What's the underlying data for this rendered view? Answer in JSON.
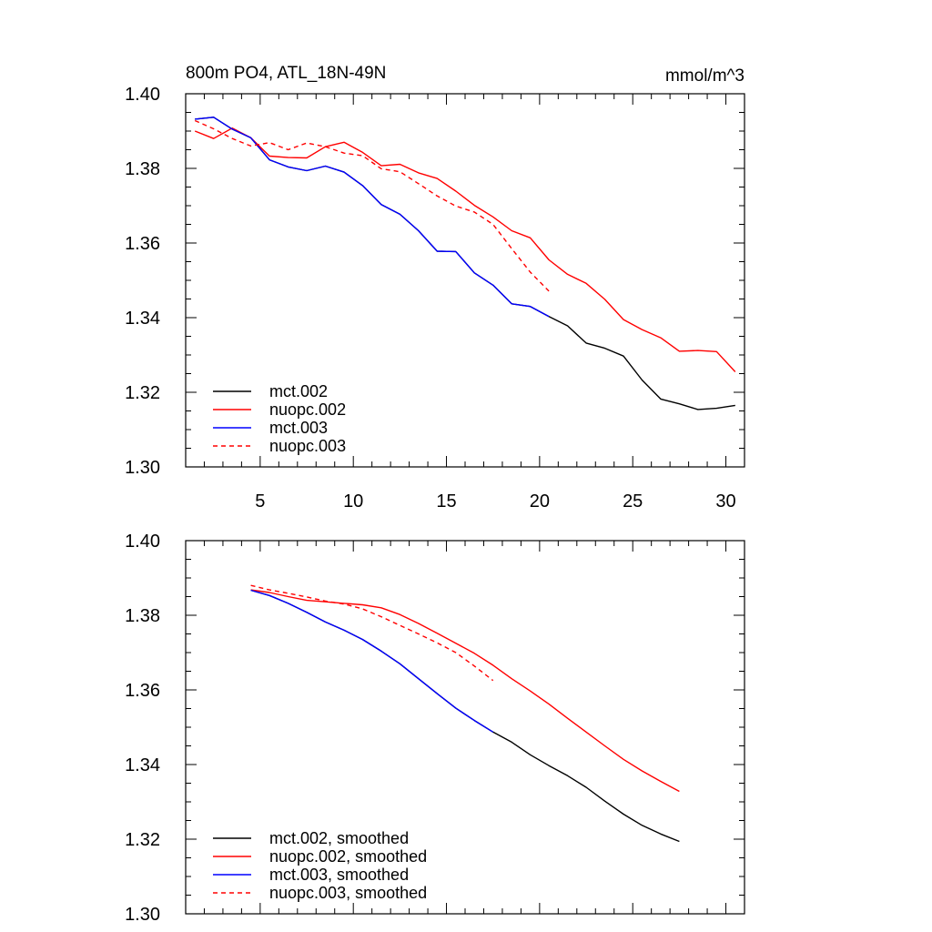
{
  "chart_data": [
    {
      "type": "line",
      "title": "800m PO4, ATL_18N-49N",
      "units": "mmol/m^3",
      "xlim": [
        1,
        31
      ],
      "ylim": [
        1.3,
        1.4
      ],
      "xticks": [
        5,
        10,
        15,
        20,
        25,
        30
      ],
      "xtick_labels": [
        "5",
        "10",
        "15",
        "20",
        "25",
        "30"
      ],
      "yticks": [
        1.3,
        1.32,
        1.34,
        1.36,
        1.38,
        1.4
      ],
      "ytick_labels": [
        "1.30",
        "1.32",
        "1.34",
        "1.36",
        "1.38",
        "1.40"
      ],
      "legend_position": "bottom-left",
      "series": [
        {
          "name": "mct.002",
          "color": "#000000",
          "dash": "solid",
          "x": [
            1.5,
            2.5,
            3.5,
            4.5,
            5.5,
            6.5,
            7.5,
            8.5,
            9.5,
            10.5,
            11.5,
            12.5,
            13.5,
            14.5,
            15.5,
            16.5,
            17.5,
            18.5,
            19.5,
            20.5,
            21.5,
            22.5,
            23.5,
            24.5,
            25.5,
            26.5,
            27.5,
            28.5,
            29.5,
            30.5
          ],
          "y": [
            1.3932,
            1.3937,
            1.3905,
            1.3882,
            1.3823,
            1.3804,
            1.3794,
            1.3806,
            1.379,
            1.3754,
            1.3703,
            1.3677,
            1.3633,
            1.3578,
            1.3577,
            1.352,
            1.3487,
            1.3437,
            1.343,
            1.3403,
            1.3378,
            1.3332,
            1.3318,
            1.3297,
            1.3233,
            1.3182,
            1.3169,
            1.3154,
            1.3157,
            1.3165
          ]
        },
        {
          "name": "nuopc.002",
          "color": "#ff0000",
          "dash": "solid",
          "x": [
            1.5,
            2.5,
            3.5,
            4.5,
            5.5,
            6.5,
            7.5,
            8.5,
            9.5,
            10.5,
            11.5,
            12.5,
            13.5,
            14.5,
            15.5,
            16.5,
            17.5,
            18.5,
            19.5,
            20.5,
            21.5,
            22.5,
            23.5,
            24.5,
            25.5,
            26.5,
            27.5,
            28.5,
            29.5,
            30.5
          ],
          "y": [
            1.39,
            1.388,
            1.3908,
            1.3882,
            1.3833,
            1.3829,
            1.3828,
            1.3858,
            1.387,
            1.3843,
            1.3807,
            1.3811,
            1.3788,
            1.3773,
            1.3739,
            1.3701,
            1.367,
            1.3633,
            1.3614,
            1.3555,
            1.3516,
            1.3492,
            1.3449,
            1.3395,
            1.3368,
            1.3346,
            1.331,
            1.3312,
            1.3309,
            1.3255
          ]
        },
        {
          "name": "mct.003",
          "color": "#0000ff",
          "dash": "solid",
          "x": [
            1.5,
            2.5,
            3.5,
            4.5,
            5.5,
            6.5,
            7.5,
            8.5,
            9.5,
            10.5,
            11.5,
            12.5,
            13.5,
            14.5,
            15.5,
            16.5,
            17.5,
            18.5,
            19.5,
            20.5
          ],
          "y": [
            1.3932,
            1.3937,
            1.3905,
            1.3882,
            1.3823,
            1.3804,
            1.3794,
            1.3806,
            1.379,
            1.3754,
            1.3703,
            1.3677,
            1.3633,
            1.3578,
            1.3577,
            1.352,
            1.3487,
            1.3437,
            1.343,
            1.3403
          ]
        },
        {
          "name": "nuopc.003",
          "color": "#ff0000",
          "dash": "dashed",
          "x": [
            1.5,
            2.5,
            3.5,
            4.5,
            5.5,
            6.5,
            7.5,
            8.5,
            9.5,
            10.5,
            11.5,
            12.5,
            13.5,
            14.5,
            15.5,
            16.5,
            17.5,
            18.5,
            19.5,
            20.5
          ],
          "y": [
            1.3928,
            1.3906,
            1.388,
            1.386,
            1.3869,
            1.385,
            1.3868,
            1.3858,
            1.3841,
            1.3834,
            1.3799,
            1.3791,
            1.3759,
            1.3726,
            1.3699,
            1.3683,
            1.365,
            1.3585,
            1.3522,
            1.3471
          ]
        }
      ]
    },
    {
      "type": "line",
      "title": "",
      "xlim": [
        1,
        31
      ],
      "ylim": [
        1.3,
        1.4
      ],
      "xticks": [
        5,
        10,
        15,
        20,
        25,
        30
      ],
      "xtick_labels": [],
      "yticks": [
        1.3,
        1.32,
        1.34,
        1.36,
        1.38,
        1.4
      ],
      "ytick_labels": [
        "1.30",
        "1.32",
        "1.34",
        "1.36",
        "1.38",
        "1.40"
      ],
      "legend_position": "bottom-left",
      "series": [
        {
          "name": "mct.002, smoothed",
          "color": "#000000",
          "dash": "solid",
          "x": [
            4.5,
            5.5,
            6.5,
            7.5,
            8.5,
            9.5,
            10.5,
            11.5,
            12.5,
            13.5,
            14.5,
            15.5,
            16.5,
            17.5,
            18.5,
            19.5,
            20.5,
            21.5,
            22.5,
            23.5,
            24.5,
            25.5,
            26.5,
            27.5
          ],
          "y": [
            1.3867,
            1.3853,
            1.3832,
            1.3808,
            1.3782,
            1.376,
            1.3735,
            1.3704,
            1.367,
            1.363,
            1.359,
            1.3551,
            1.3518,
            1.3487,
            1.346,
            1.3426,
            1.3397,
            1.337,
            1.3339,
            1.3302,
            1.3267,
            1.3237,
            1.3214,
            1.3194
          ]
        },
        {
          "name": "nuopc.002, smoothed",
          "color": "#ff0000",
          "dash": "solid",
          "x": [
            4.5,
            5.5,
            6.5,
            7.5,
            8.5,
            9.5,
            10.5,
            11.5,
            12.5,
            13.5,
            14.5,
            15.5,
            16.5,
            17.5,
            18.5,
            19.5,
            20.5,
            21.5,
            22.5,
            23.5,
            24.5,
            25.5,
            26.5,
            27.5
          ],
          "y": [
            1.3868,
            1.3861,
            1.385,
            1.384,
            1.3836,
            1.3832,
            1.3828,
            1.382,
            1.3802,
            1.3778,
            1.3752,
            1.3725,
            1.3698,
            1.3666,
            1.363,
            1.3597,
            1.3562,
            1.3524,
            1.3487,
            1.345,
            1.3414,
            1.3383,
            1.3355,
            1.3328
          ]
        },
        {
          "name": "mct.003, smoothed",
          "color": "#0000ff",
          "dash": "solid",
          "x": [
            4.5,
            5.5,
            6.5,
            7.5,
            8.5,
            9.5,
            10.5,
            11.5,
            12.5,
            13.5,
            14.5,
            15.5,
            16.5,
            17.5
          ],
          "y": [
            1.3867,
            1.3853,
            1.3832,
            1.3808,
            1.3782,
            1.376,
            1.3735,
            1.3704,
            1.367,
            1.363,
            1.359,
            1.3551,
            1.3518,
            1.3487
          ]
        },
        {
          "name": "nuopc.003, smoothed",
          "color": "#ff0000",
          "dash": "dashed",
          "x": [
            4.5,
            5.5,
            6.5,
            7.5,
            8.5,
            9.5,
            10.5,
            11.5,
            12.5,
            13.5,
            14.5,
            15.5,
            16.5,
            17.5
          ],
          "y": [
            1.388,
            1.3868,
            1.3859,
            1.3849,
            1.3838,
            1.383,
            1.3817,
            1.3796,
            1.3773,
            1.375,
            1.3726,
            1.37,
            1.3664,
            1.3625
          ]
        }
      ]
    }
  ]
}
